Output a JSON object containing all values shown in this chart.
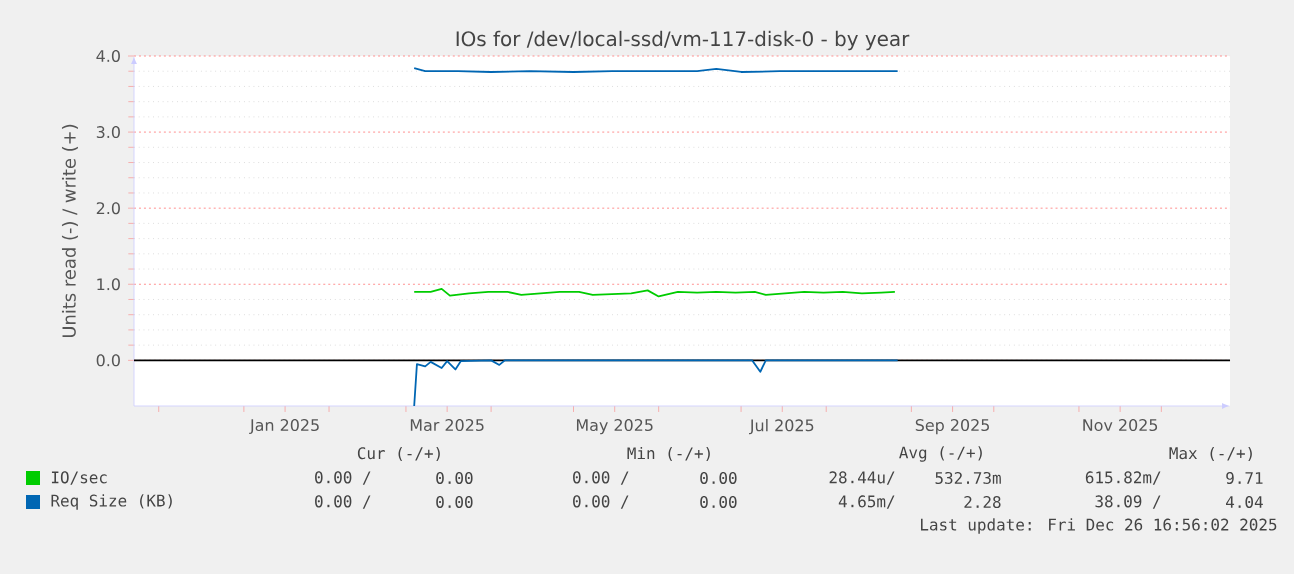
{
  "chart_data": {
    "type": "line",
    "title": "IOs for /dev/local-ssd/vm-117-disk-0 - by year",
    "ylabel": "Units read (-) / write (+)",
    "xlim": [
      "2024-11-22",
      "2025-12-26"
    ],
    "xticks": [
      {
        "value": "2024-12-01",
        "label": null
      },
      {
        "value": "2025-01-01",
        "label": null
      },
      {
        "value": "2025-01-16",
        "label": "Jan 2025"
      },
      {
        "value": "2025-02-01",
        "label": null
      },
      {
        "value": "2025-03-01",
        "label": null
      },
      {
        "value": "2025-03-16",
        "label": "Mar 2025"
      },
      {
        "value": "2025-04-01",
        "label": null
      },
      {
        "value": "2025-05-01",
        "label": null
      },
      {
        "value": "2025-05-16",
        "label": "May 2025"
      },
      {
        "value": "2025-06-01",
        "label": null
      },
      {
        "value": "2025-07-01",
        "label": null
      },
      {
        "value": "2025-07-16",
        "label": "Jul 2025"
      },
      {
        "value": "2025-08-01",
        "label": null
      },
      {
        "value": "2025-09-01",
        "label": null
      },
      {
        "value": "2025-09-16",
        "label": "Sep 2025"
      },
      {
        "value": "2025-10-01",
        "label": null
      },
      {
        "value": "2025-11-01",
        "label": null
      },
      {
        "value": "2025-11-16",
        "label": "Nov 2025"
      },
      {
        "value": "2025-12-01",
        "label": null
      }
    ],
    "ylim": [
      -0.6,
      4.0
    ],
    "yticks": [
      {
        "value": 0,
        "label": "0.0"
      },
      {
        "value": 1,
        "label": "1.0"
      },
      {
        "value": 2,
        "label": "2.0"
      },
      {
        "value": 3,
        "label": "3.0"
      },
      {
        "value": 4,
        "label": "4.0"
      }
    ],
    "grid": true,
    "legend": "bottom",
    "marker": "none",
    "line_style": "solid",
    "ref_lines": [
      {
        "axis": "y",
        "value": 0,
        "color": "#000000"
      }
    ],
    "series": [
      {
        "name": "IO/sec",
        "color": "#00cc00",
        "x": [
          "2025-03-04",
          "2025-03-10",
          "2025-03-14",
          "2025-03-17",
          "2025-03-24",
          "2025-03-31",
          "2025-04-07",
          "2025-04-12",
          "2025-04-19",
          "2025-04-26",
          "2025-05-03",
          "2025-05-08",
          "2025-05-15",
          "2025-05-22",
          "2025-05-28",
          "2025-06-01",
          "2025-06-08",
          "2025-06-15",
          "2025-06-22",
          "2025-06-29",
          "2025-07-06",
          "2025-07-10",
          "2025-07-17",
          "2025-07-24",
          "2025-07-31",
          "2025-08-07",
          "2025-08-14",
          "2025-08-21",
          "2025-08-26"
        ],
        "values": [
          0.9,
          0.9,
          0.94,
          0.85,
          0.88,
          0.9,
          0.9,
          0.86,
          0.88,
          0.9,
          0.9,
          0.86,
          0.87,
          0.88,
          0.92,
          0.84,
          0.9,
          0.89,
          0.9,
          0.89,
          0.9,
          0.86,
          0.88,
          0.9,
          0.89,
          0.9,
          0.88,
          0.89,
          0.9
        ]
      },
      {
        "name": "Req Size (KB)",
        "color": "#0066b3",
        "x": [
          "2025-03-04",
          "2025-03-08",
          "2025-03-20",
          "2025-04-01",
          "2025-04-15",
          "2025-05-01",
          "2025-05-15",
          "2025-06-01",
          "2025-06-15",
          "2025-06-22",
          "2025-07-01",
          "2025-07-15",
          "2025-08-01",
          "2025-08-15",
          "2025-08-27"
        ],
        "values": [
          3.84,
          3.8,
          3.8,
          3.79,
          3.8,
          3.79,
          3.8,
          3.8,
          3.8,
          3.83,
          3.79,
          3.8,
          3.8,
          3.8,
          3.8
        ]
      },
      {
        "color": "#0066b3",
        "x": [
          "2025-03-04",
          "2025-03-05",
          "2025-03-08",
          "2025-03-10",
          "2025-03-14",
          "2025-03-16",
          "2025-03-19",
          "2025-03-21",
          "2025-04-01",
          "2025-04-04",
          "2025-04-06",
          "2025-07-05",
          "2025-07-08",
          "2025-07-10",
          "2025-08-27"
        ],
        "values": [
          -0.6,
          -0.05,
          -0.08,
          -0.02,
          -0.1,
          -0.01,
          -0.12,
          -0.01,
          0,
          -0.06,
          0,
          0,
          -0.15,
          0,
          0
        ]
      }
    ],
    "annotations": [
      "Cur (-/+)",
      "Min (-/+)",
      "Avg (-/+)",
      "Max (-/+)",
      "0.00 /",
      "0.00",
      "0.00 /",
      "0.00",
      "28.44u/",
      "532.73m",
      "615.82m/",
      "9.71",
      "0.00 /",
      "0.00",
      "0.00 /",
      "0.00",
      "4.65m/",
      "2.28",
      "38.09 /",
      "4.04",
      "Last update: Fri Dec 26 16:56:02 2025"
    ]
  }
}
